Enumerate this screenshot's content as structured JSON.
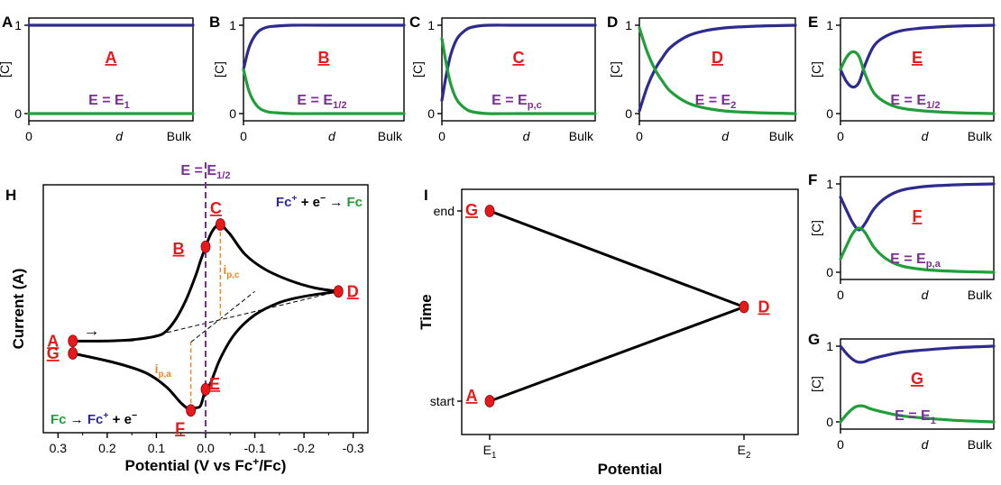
{
  "colors": {
    "blue": "#2e2b8f",
    "green": "#1f9e3a",
    "red": "#e8191c",
    "purple": "#7b2f96",
    "orange": "#f08224",
    "black": "#000000"
  },
  "chart_data": [
    {
      "panel": "A",
      "type": "line",
      "ylabel": "[C]",
      "xlabel": "d",
      "x_ticks": [
        "0",
        "Bulk"
      ],
      "y_ticks": [
        "0",
        "1"
      ],
      "ylim": [
        0,
        1
      ],
      "xlim": [
        0,
        1
      ],
      "label": "A",
      "potential_label": {
        "main": "E = E",
        "sub": "1"
      },
      "series": [
        {
          "color": "blue",
          "x": [
            0,
            1
          ],
          "y": [
            1,
            1
          ]
        },
        {
          "color": "green",
          "x": [
            0,
            1
          ],
          "y": [
            0,
            0
          ]
        }
      ]
    },
    {
      "panel": "B",
      "type": "line",
      "ylabel": "[C]",
      "xlabel": "d",
      "x_ticks": [
        "0",
        "Bulk"
      ],
      "y_ticks": [
        "0",
        "1"
      ],
      "ylim": [
        0,
        1
      ],
      "xlim": [
        0,
        1
      ],
      "label": "B",
      "potential_label": {
        "main": "E = E",
        "sub": "1/2"
      },
      "series": [
        {
          "color": "blue",
          "x": [
            0,
            0.03,
            0.06,
            0.1,
            0.15,
            0.2,
            0.3,
            0.5,
            1.0
          ],
          "y": [
            0.5,
            0.72,
            0.85,
            0.94,
            0.98,
            0.99,
            1.0,
            1.0,
            1.0
          ]
        },
        {
          "color": "green",
          "x": [
            0,
            0.03,
            0.06,
            0.1,
            0.15,
            0.2,
            0.3,
            0.5,
            1.0
          ],
          "y": [
            0.5,
            0.28,
            0.15,
            0.06,
            0.02,
            0.01,
            0.0,
            0.0,
            0.0
          ]
        }
      ]
    },
    {
      "panel": "C",
      "type": "line",
      "ylabel": "[C]",
      "xlabel": "d",
      "x_ticks": [
        "0",
        "Bulk"
      ],
      "y_ticks": [
        "0",
        "1"
      ],
      "ylim": [
        0,
        1
      ],
      "xlim": [
        0,
        1
      ],
      "label": "C",
      "potential_label": {
        "main": "E = E",
        "sub": "p,c"
      },
      "series": [
        {
          "color": "blue",
          "x": [
            0,
            0.03,
            0.06,
            0.1,
            0.15,
            0.2,
            0.3,
            0.5,
            1.0
          ],
          "y": [
            0.15,
            0.45,
            0.68,
            0.85,
            0.94,
            0.98,
            1.0,
            1.0,
            1.0
          ]
        },
        {
          "color": "green",
          "x": [
            0,
            0.03,
            0.06,
            0.1,
            0.15,
            0.2,
            0.3,
            0.5,
            1.0
          ],
          "y": [
            0.85,
            0.55,
            0.32,
            0.15,
            0.06,
            0.02,
            0.0,
            0.0,
            0.0
          ]
        }
      ]
    },
    {
      "panel": "D",
      "type": "line",
      "ylabel": "[C]",
      "xlabel": "d",
      "x_ticks": [
        "0",
        "Bulk"
      ],
      "y_ticks": [
        "0",
        "1"
      ],
      "ylim": [
        0,
        1
      ],
      "xlim": [
        0,
        1
      ],
      "label": "D",
      "potential_label": {
        "main": "E = E",
        "sub": "2"
      },
      "series": [
        {
          "color": "blue",
          "x": [
            0,
            0.05,
            0.1,
            0.15,
            0.2,
            0.3,
            0.4,
            0.55,
            0.75,
            1.0
          ],
          "y": [
            0.03,
            0.3,
            0.5,
            0.64,
            0.75,
            0.87,
            0.93,
            0.97,
            0.99,
            1.0
          ]
        },
        {
          "color": "green",
          "x": [
            0,
            0.05,
            0.1,
            0.15,
            0.2,
            0.3,
            0.4,
            0.55,
            0.75,
            1.0
          ],
          "y": [
            0.97,
            0.7,
            0.5,
            0.36,
            0.25,
            0.13,
            0.07,
            0.03,
            0.01,
            0.0
          ]
        }
      ]
    },
    {
      "panel": "E",
      "type": "line",
      "ylabel": "[C]",
      "xlabel": "d",
      "x_ticks": [
        "0",
        "Bulk"
      ],
      "y_ticks": [
        "0",
        "1"
      ],
      "ylim": [
        0,
        1
      ],
      "xlim": [
        0,
        1
      ],
      "label": "E",
      "potential_label": {
        "main": "E = E",
        "sub": "1/2"
      },
      "series": [
        {
          "color": "blue",
          "x": [
            0,
            0.04,
            0.08,
            0.12,
            0.16,
            0.22,
            0.3,
            0.4,
            0.55,
            0.75,
            1.0
          ],
          "y": [
            0.5,
            0.36,
            0.3,
            0.35,
            0.55,
            0.77,
            0.88,
            0.94,
            0.97,
            0.99,
            1.0
          ]
        },
        {
          "color": "green",
          "x": [
            0,
            0.04,
            0.08,
            0.12,
            0.16,
            0.22,
            0.3,
            0.4,
            0.55,
            0.75,
            1.0
          ],
          "y": [
            0.5,
            0.64,
            0.7,
            0.65,
            0.45,
            0.23,
            0.12,
            0.06,
            0.03,
            0.01,
            0.0
          ]
        }
      ]
    },
    {
      "panel": "F",
      "type": "line",
      "ylabel": "[C]",
      "xlabel": "d",
      "x_ticks": [
        "0",
        "Bulk"
      ],
      "y_ticks": [
        "0",
        "1"
      ],
      "ylim": [
        0,
        1
      ],
      "xlim": [
        0,
        1
      ],
      "label": "F",
      "potential_label": {
        "main": "E = E",
        "sub": "p,a"
      },
      "series": [
        {
          "color": "blue",
          "x": [
            0,
            0.04,
            0.08,
            0.12,
            0.16,
            0.22,
            0.3,
            0.4,
            0.55,
            0.75,
            1.0
          ],
          "y": [
            0.85,
            0.7,
            0.56,
            0.48,
            0.55,
            0.72,
            0.85,
            0.93,
            0.97,
            0.99,
            1.0
          ]
        },
        {
          "color": "green",
          "x": [
            0,
            0.04,
            0.08,
            0.12,
            0.16,
            0.22,
            0.3,
            0.4,
            0.55,
            0.75,
            1.0
          ],
          "y": [
            0.15,
            0.3,
            0.44,
            0.5,
            0.45,
            0.28,
            0.15,
            0.07,
            0.03,
            0.01,
            0.0
          ]
        }
      ]
    },
    {
      "panel": "G",
      "type": "line",
      "ylabel": "[C]",
      "xlabel": "d",
      "x_ticks": [
        "0",
        "Bulk"
      ],
      "y_ticks": [
        "0",
        "1"
      ],
      "ylim": [
        0,
        1
      ],
      "xlim": [
        0,
        1
      ],
      "label": "G",
      "potential_label": {
        "main": "E = E",
        "sub": "1"
      },
      "series": [
        {
          "color": "blue",
          "x": [
            0,
            0.05,
            0.1,
            0.15,
            0.2,
            0.3,
            0.4,
            0.55,
            0.75,
            1.0
          ],
          "y": [
            1.0,
            0.88,
            0.8,
            0.79,
            0.83,
            0.88,
            0.92,
            0.95,
            0.98,
            1.0
          ]
        },
        {
          "color": "green",
          "x": [
            0,
            0.05,
            0.1,
            0.15,
            0.2,
            0.3,
            0.4,
            0.55,
            0.75,
            1.0
          ],
          "y": [
            0.0,
            0.12,
            0.2,
            0.21,
            0.17,
            0.12,
            0.08,
            0.05,
            0.02,
            0.0
          ]
        }
      ]
    },
    {
      "panel": "H",
      "type": "line",
      "xlabel": "Potential (V vs Fc⁺/Fc)",
      "ylabel": "Current (A)",
      "x_ticks": [
        "0.3",
        "0.2",
        "0.1",
        "0.0",
        "-0.1",
        "-0.2",
        "-0.3"
      ],
      "xlim": [
        0.33,
        -0.33
      ],
      "ylim": [
        -1.0,
        1.0
      ],
      "half_wave_label": {
        "main": "E = E",
        "sub": "1/2"
      },
      "reaction_cathodic": {
        "lhs": "Fc",
        "sup": "+",
        "mid": " + e",
        "sup2": "−",
        "arrow": " → ",
        "rhs": "Fc"
      },
      "reaction_anodic": {
        "lhs": "Fc",
        "arrow": " → ",
        "rhs": "Fc",
        "sup": "+",
        "tail": " + e",
        "sup2": "−"
      },
      "ipc_label": {
        "main": "i",
        "sub": "p,c"
      },
      "ipa_label": {
        "main": "i",
        "sub": "p,a"
      },
      "arrow_glyph": "→",
      "forward_scan": {
        "x": [
          0.27,
          0.2,
          0.15,
          0.1,
          0.08,
          0.06,
          0.04,
          0.02,
          0.01,
          0.0,
          -0.01,
          -0.02,
          -0.03,
          -0.05,
          -0.08,
          -0.12,
          -0.17,
          -0.22,
          -0.27
        ],
        "y": [
          -0.26,
          -0.26,
          -0.25,
          -0.22,
          -0.18,
          -0.08,
          0.07,
          0.27,
          0.39,
          0.5,
          0.6,
          0.66,
          0.68,
          0.6,
          0.44,
          0.32,
          0.23,
          0.17,
          0.14
        ]
      },
      "reverse_scan": {
        "x": [
          -0.27,
          -0.2,
          -0.15,
          -0.1,
          -0.06,
          -0.03,
          -0.01,
          0.0,
          0.01,
          0.02,
          0.03,
          0.05,
          0.08,
          0.12,
          0.18,
          0.27
        ],
        "y": [
          0.14,
          0.1,
          0.05,
          -0.05,
          -0.2,
          -0.4,
          -0.6,
          -0.65,
          -0.78,
          -0.8,
          -0.82,
          -0.76,
          -0.63,
          -0.52,
          -0.44,
          -0.36
        ]
      },
      "points": [
        {
          "label": "A",
          "x": 0.27,
          "y": -0.26
        },
        {
          "label": "B",
          "x": 0.0,
          "y": 0.5
        },
        {
          "label": "C",
          "x": -0.03,
          "y": 0.68
        },
        {
          "label": "D",
          "x": -0.27,
          "y": 0.14
        },
        {
          "label": "E",
          "x": 0.0,
          "y": -0.65
        },
        {
          "label": "F",
          "x": 0.03,
          "y": -0.82
        },
        {
          "label": "G",
          "x": 0.27,
          "y": -0.36
        }
      ],
      "half_wave_potential": 0.0,
      "cathodic_baseline": {
        "x": [
          0.15,
          -0.27
        ],
        "y": [
          -0.26,
          0.14
        ]
      },
      "anodic_baseline": {
        "x": [
          0.03,
          -0.1
        ],
        "y": [
          -0.27,
          0.14
        ]
      }
    },
    {
      "panel": "I",
      "type": "line",
      "xlabel": "Potential",
      "ylabel": "Time",
      "x_ticks": [
        {
          "main": "E",
          "sub": "1"
        },
        {
          "main": "E",
          "sub": "2"
        }
      ],
      "y_ticks": [
        "start",
        "end"
      ],
      "series": [
        {
          "color": "black",
          "x": [
            "E1",
            "E2",
            "E1"
          ],
          "y": [
            "start",
            "midpoint",
            "end"
          ]
        }
      ],
      "points": [
        {
          "label": "A",
          "at": "E1,start"
        },
        {
          "label": "D",
          "at": "E2,midpoint"
        },
        {
          "label": "G",
          "at": "E1,end"
        }
      ]
    }
  ]
}
